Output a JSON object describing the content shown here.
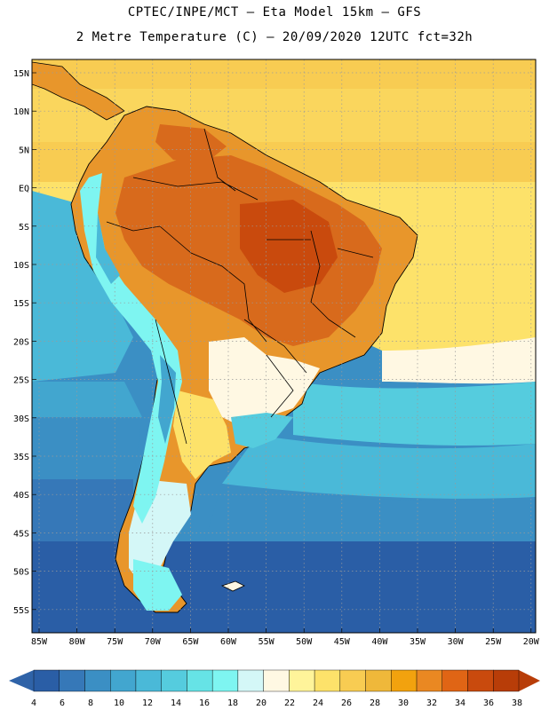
{
  "header": {
    "line1": "CPTEC/INPE/MCT –  Eta Model 15km – GFS",
    "line2": "2 Metre Temperature (C) – 20/09/2020 12UTC fct=32h"
  },
  "axes": {
    "lat_labels": [
      "15N",
      "10N",
      "5N",
      "EQ",
      "5S",
      "10S",
      "15S",
      "20S",
      "25S",
      "30S",
      "35S",
      "40S",
      "45S",
      "50S",
      "55S"
    ],
    "lon_labels": [
      "85W",
      "80W",
      "75W",
      "70W",
      "65W",
      "60W",
      "55W",
      "50W",
      "45W",
      "40W",
      "35W",
      "30W",
      "25W",
      "20W"
    ]
  },
  "colorbar": {
    "ticks": [
      "4",
      "6",
      "8",
      "10",
      "12",
      "14",
      "16",
      "18",
      "20",
      "22",
      "24",
      "26",
      "28",
      "30",
      "32",
      "34",
      "36",
      "38"
    ],
    "colors": [
      "#2a5ea6",
      "#3678b8",
      "#3b8fc4",
      "#42a6cf",
      "#4ab9d8",
      "#55ccde",
      "#66e3e6",
      "#7ef5f1",
      "#d4f7f7",
      "#fff8e3",
      "#fff49a",
      "#fde26a",
      "#f8cc52",
      "#efb83a",
      "#f2a20e",
      "#ea8822",
      "#e06515",
      "#c94a0d",
      "#b83d08"
    ],
    "low_arrow": "#2f63a8",
    "high_arrow": "#b83d08"
  },
  "palette": {
    "ocean_deep": "#2a5ea6",
    "ocean_mid": "#3b8fc4",
    "ocean_light": "#4ab9d8",
    "ocean_cyan": "#55ccde",
    "warm_ocean": "#f8cc52",
    "land_hot": "#d86a1c",
    "land_warm": "#e8962b",
    "land_mild": "#fde26a",
    "land_cool": "#fff8e3",
    "andes": "#7ef5f1"
  }
}
